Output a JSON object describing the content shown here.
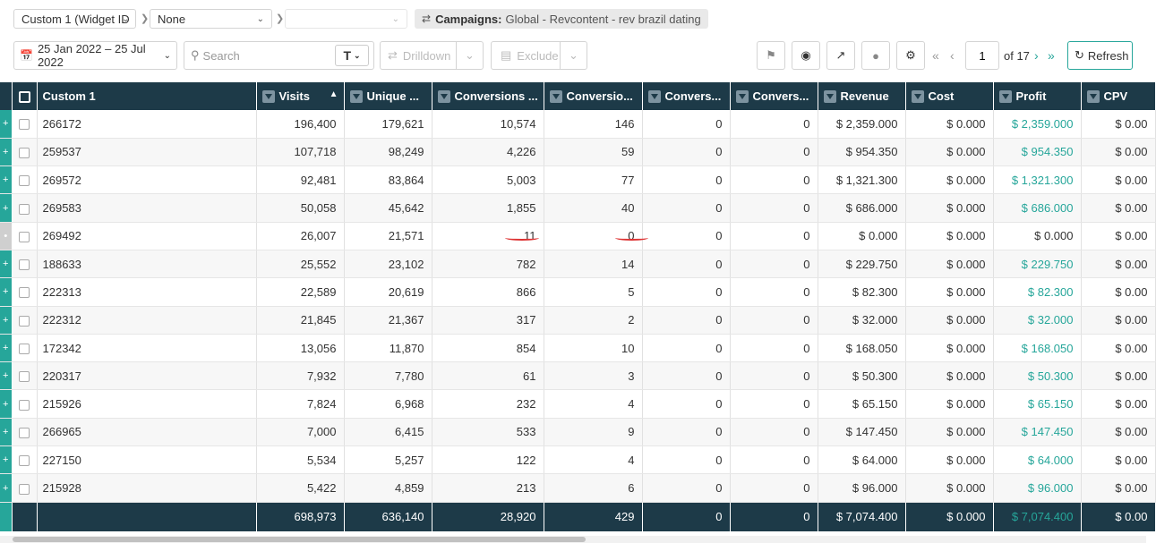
{
  "topbar": {
    "grouping1": "Custom 1 (Widget ID",
    "grouping2": "None",
    "grouping3": "",
    "campaign_label": "Campaigns:",
    "campaign_value": "Global - Revcontent - rev brazil dating"
  },
  "toolbar": {
    "date_range": "25 Jan 2022 – 25 Jul 2022",
    "search_placeholder": "Search",
    "drilldown_label": "Drilldown",
    "exclude_label": "Exclude",
    "page_current": "1",
    "page_total": "of 17",
    "refresh_label": "Refresh"
  },
  "columns": [
    "Custom 1",
    "Visits",
    "Unique ...",
    "Conversions ...",
    "Conversio...",
    "Convers...",
    "Convers...",
    "Revenue",
    "Cost",
    "Profit",
    "CPV"
  ],
  "rows": [
    {
      "id": "266172",
      "visits": "196,400",
      "unique": "179,621",
      "conv1": "10,574",
      "conv2": "146",
      "conv3": "0",
      "conv4": "0",
      "revenue": "$ 2,359.000",
      "cost": "$ 0.000",
      "profit": "$ 2,359.000",
      "cpv": "$ 0.00"
    },
    {
      "id": "259537",
      "visits": "107,718",
      "unique": "98,249",
      "conv1": "4,226",
      "conv2": "59",
      "conv3": "0",
      "conv4": "0",
      "revenue": "$ 954.350",
      "cost": "$ 0.000",
      "profit": "$ 954.350",
      "cpv": "$ 0.00"
    },
    {
      "id": "269572",
      "visits": "92,481",
      "unique": "83,864",
      "conv1": "5,003",
      "conv2": "77",
      "conv3": "0",
      "conv4": "0",
      "revenue": "$ 1,321.300",
      "cost": "$ 0.000",
      "profit": "$ 1,321.300",
      "cpv": "$ 0.00"
    },
    {
      "id": "269583",
      "visits": "50,058",
      "unique": "45,642",
      "conv1": "1,855",
      "conv2": "40",
      "conv3": "0",
      "conv4": "0",
      "revenue": "$ 686.000",
      "cost": "$ 0.000",
      "profit": "$ 686.000",
      "cpv": "$ 0.00"
    },
    {
      "id": "269492",
      "visits": "26,007",
      "unique": "21,571",
      "conv1": "11",
      "conv2": "0",
      "conv3": "0",
      "conv4": "0",
      "revenue": "$ 0.000",
      "cost": "$ 0.000",
      "profit": "$ 0.000",
      "cpv": "$ 0.00"
    },
    {
      "id": "188633",
      "visits": "25,552",
      "unique": "23,102",
      "conv1": "782",
      "conv2": "14",
      "conv3": "0",
      "conv4": "0",
      "revenue": "$ 229.750",
      "cost": "$ 0.000",
      "profit": "$ 229.750",
      "cpv": "$ 0.00"
    },
    {
      "id": "222313",
      "visits": "22,589",
      "unique": "20,619",
      "conv1": "866",
      "conv2": "5",
      "conv3": "0",
      "conv4": "0",
      "revenue": "$ 82.300",
      "cost": "$ 0.000",
      "profit": "$ 82.300",
      "cpv": "$ 0.00"
    },
    {
      "id": "222312",
      "visits": "21,845",
      "unique": "21,367",
      "conv1": "317",
      "conv2": "2",
      "conv3": "0",
      "conv4": "0",
      "revenue": "$ 32.000",
      "cost": "$ 0.000",
      "profit": "$ 32.000",
      "cpv": "$ 0.00"
    },
    {
      "id": "172342",
      "visits": "13,056",
      "unique": "11,870",
      "conv1": "854",
      "conv2": "10",
      "conv3": "0",
      "conv4": "0",
      "revenue": "$ 168.050",
      "cost": "$ 0.000",
      "profit": "$ 168.050",
      "cpv": "$ 0.00"
    },
    {
      "id": "220317",
      "visits": "7,932",
      "unique": "7,780",
      "conv1": "61",
      "conv2": "3",
      "conv3": "0",
      "conv4": "0",
      "revenue": "$ 50.300",
      "cost": "$ 0.000",
      "profit": "$ 50.300",
      "cpv": "$ 0.00"
    },
    {
      "id": "215926",
      "visits": "7,824",
      "unique": "6,968",
      "conv1": "232",
      "conv2": "4",
      "conv3": "0",
      "conv4": "0",
      "revenue": "$ 65.150",
      "cost": "$ 0.000",
      "profit": "$ 65.150",
      "cpv": "$ 0.00"
    },
    {
      "id": "266965",
      "visits": "7,000",
      "unique": "6,415",
      "conv1": "533",
      "conv2": "9",
      "conv3": "0",
      "conv4": "0",
      "revenue": "$ 147.450",
      "cost": "$ 0.000",
      "profit": "$ 147.450",
      "cpv": "$ 0.00"
    },
    {
      "id": "227150",
      "visits": "5,534",
      "unique": "5,257",
      "conv1": "122",
      "conv2": "4",
      "conv3": "0",
      "conv4": "0",
      "revenue": "$ 64.000",
      "cost": "$ 0.000",
      "profit": "$ 64.000",
      "cpv": "$ 0.00"
    },
    {
      "id": "215928",
      "visits": "5,422",
      "unique": "4,859",
      "conv1": "213",
      "conv2": "6",
      "conv3": "0",
      "conv4": "0",
      "revenue": "$ 96.000",
      "cost": "$ 0.000",
      "profit": "$ 96.000",
      "cpv": "$ 0.00"
    }
  ],
  "totals": {
    "visits": "698,973",
    "unique": "636,140",
    "conv1": "28,920",
    "conv2": "429",
    "conv3": "0",
    "conv4": "0",
    "revenue": "$ 7,074.400",
    "cost": "$ 0.000",
    "profit": "$ 7,074.400",
    "cpv": "$ 0.00"
  },
  "colors": {
    "header_bg": "#1d3a48",
    "accent": "#26a69a",
    "annotation": "#dd3333"
  }
}
